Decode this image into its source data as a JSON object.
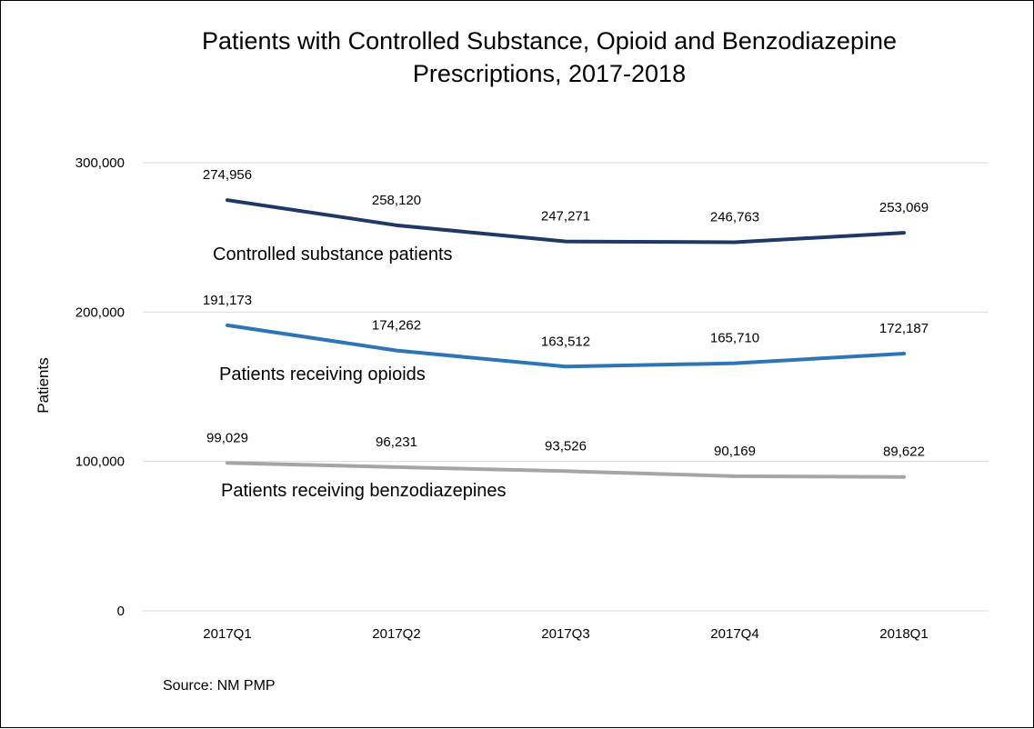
{
  "chart_data": {
    "type": "line",
    "title_lines": [
      "Patients with Controlled Substance, Opioid and Benzodiazepine",
      "Prescriptions, 2017-2018"
    ],
    "ylabel": "Patients",
    "xlabel": "",
    "ylim": [
      0,
      300000
    ],
    "y_ticks": [
      0,
      100000,
      200000,
      300000
    ],
    "y_tick_labels": [
      "0",
      "100,000",
      "200,000",
      "300,000"
    ],
    "grid": true,
    "legend": "none",
    "categories": [
      "2017Q1",
      "2017Q2",
      "2017Q3",
      "2017Q4",
      "2018Q1"
    ],
    "series": [
      {
        "name": "Controlled substance patients",
        "color": "#1f3864",
        "values": [
          274956,
          258120,
          247271,
          246763,
          253069
        ],
        "value_labels": [
          "274,956",
          "258,120",
          "247,271",
          "246,763",
          "253,069"
        ]
      },
      {
        "name": "Patients receiving opioids",
        "color": "#2e75b6",
        "values": [
          191173,
          174262,
          163512,
          165710,
          172187
        ],
        "value_labels": [
          "191,173",
          "174,262",
          "163,512",
          "165,710",
          "172,187"
        ]
      },
      {
        "name": "Patients receiving benzodiazepines",
        "color": "#a5a5a5",
        "values": [
          99029,
          96231,
          93526,
          90169,
          89622
        ],
        "value_labels": [
          "99,029",
          "96,231",
          "93,526",
          "90,169",
          "89,622"
        ]
      }
    ],
    "source": "Source:  NM PMP"
  }
}
